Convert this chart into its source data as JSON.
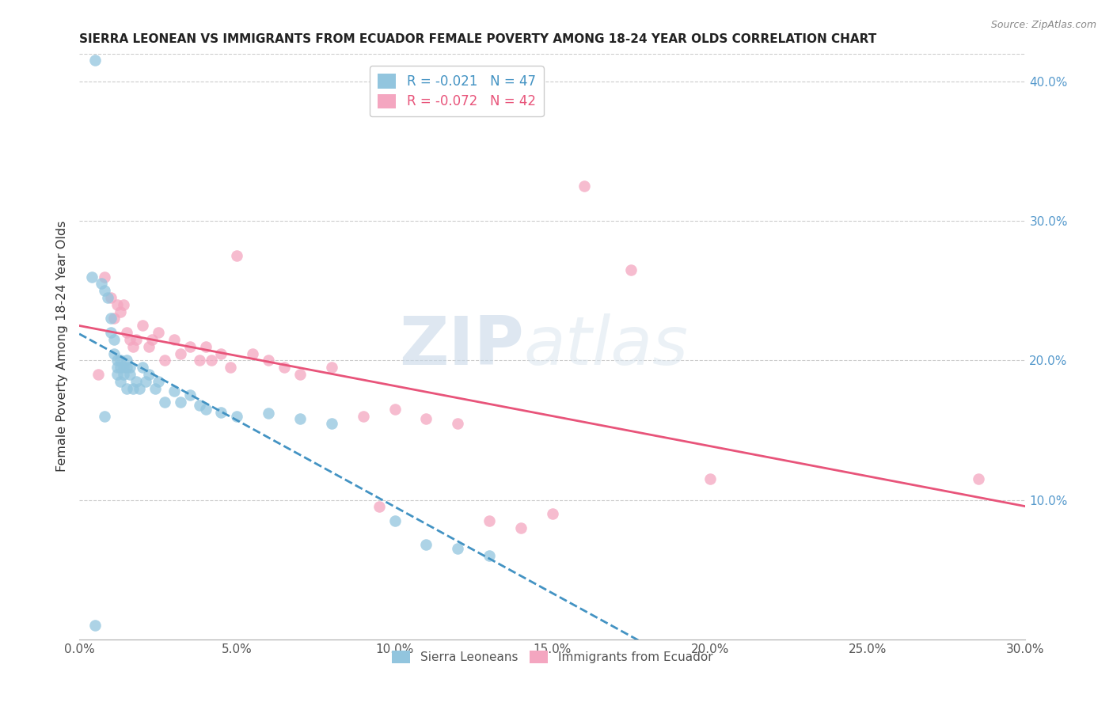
{
  "title": "SIERRA LEONEAN VS IMMIGRANTS FROM ECUADOR FEMALE POVERTY AMONG 18-24 YEAR OLDS CORRELATION CHART",
  "source": "Source: ZipAtlas.com",
  "ylabel": "Female Poverty Among 18-24 Year Olds",
  "xlim": [
    0.0,
    0.3
  ],
  "ylim": [
    0.0,
    0.42
  ],
  "right_yticks": [
    0.1,
    0.2,
    0.3,
    0.4
  ],
  "right_yticklabels": [
    "10.0%",
    "20.0%",
    "30.0%",
    "40.0%"
  ],
  "xticks": [
    0.0,
    0.05,
    0.1,
    0.15,
    0.2,
    0.25,
    0.3
  ],
  "xticklabels": [
    "0.0%",
    "5.0%",
    "10.0%",
    "15.0%",
    "20.0%",
    "25.0%",
    "30.0%"
  ],
  "watermark": "ZIPatlas",
  "blue_color": "#92c5de",
  "pink_color": "#f4a6c0",
  "blue_line_color": "#4393c3",
  "pink_line_color": "#e8547a",
  "right_axis_color": "#5599cc",
  "legend_blue_text": "R = -0.021   N = 47",
  "legend_pink_text": "R = -0.072   N = 42",
  "sierra_x": [
    0.005,
    0.004,
    0.007,
    0.008,
    0.009,
    0.01,
    0.01,
    0.011,
    0.011,
    0.012,
    0.012,
    0.012,
    0.013,
    0.013,
    0.013,
    0.014,
    0.014,
    0.015,
    0.015,
    0.015,
    0.016,
    0.016,
    0.017,
    0.018,
    0.019,
    0.02,
    0.021,
    0.022,
    0.024,
    0.025,
    0.027,
    0.03,
    0.032,
    0.035,
    0.038,
    0.04,
    0.045,
    0.05,
    0.06,
    0.07,
    0.08,
    0.1,
    0.11,
    0.12,
    0.13,
    0.005,
    0.008
  ],
  "sierra_y": [
    0.01,
    0.26,
    0.255,
    0.25,
    0.245,
    0.23,
    0.22,
    0.215,
    0.205,
    0.2,
    0.195,
    0.19,
    0.2,
    0.195,
    0.185,
    0.19,
    0.195,
    0.2,
    0.195,
    0.18,
    0.195,
    0.19,
    0.18,
    0.185,
    0.18,
    0.195,
    0.185,
    0.19,
    0.18,
    0.185,
    0.17,
    0.178,
    0.17,
    0.175,
    0.168,
    0.165,
    0.163,
    0.16,
    0.162,
    0.158,
    0.155,
    0.085,
    0.068,
    0.065,
    0.06,
    0.415,
    0.16
  ],
  "ecuador_x": [
    0.006,
    0.008,
    0.01,
    0.011,
    0.012,
    0.013,
    0.014,
    0.015,
    0.016,
    0.017,
    0.018,
    0.02,
    0.022,
    0.023,
    0.025,
    0.027,
    0.03,
    0.032,
    0.035,
    0.038,
    0.04,
    0.042,
    0.045,
    0.048,
    0.05,
    0.055,
    0.06,
    0.065,
    0.07,
    0.08,
    0.09,
    0.095,
    0.1,
    0.11,
    0.12,
    0.13,
    0.14,
    0.15,
    0.16,
    0.175,
    0.2,
    0.285
  ],
  "ecuador_y": [
    0.19,
    0.26,
    0.245,
    0.23,
    0.24,
    0.235,
    0.24,
    0.22,
    0.215,
    0.21,
    0.215,
    0.225,
    0.21,
    0.215,
    0.22,
    0.2,
    0.215,
    0.205,
    0.21,
    0.2,
    0.21,
    0.2,
    0.205,
    0.195,
    0.275,
    0.205,
    0.2,
    0.195,
    0.19,
    0.195,
    0.16,
    0.095,
    0.165,
    0.158,
    0.155,
    0.085,
    0.08,
    0.09,
    0.325,
    0.265,
    0.115,
    0.115
  ]
}
